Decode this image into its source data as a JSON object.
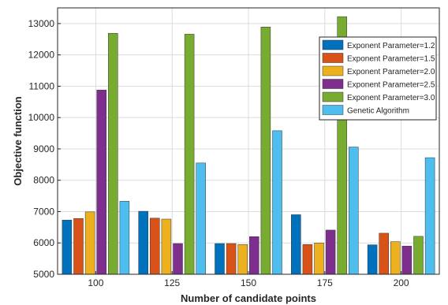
{
  "chart_data": {
    "type": "bar",
    "xlabel": "Number of candidate points",
    "ylabel": "Objective function",
    "categories": [
      "100",
      "125",
      "150",
      "175",
      "200"
    ],
    "ylim": [
      5000,
      13500
    ],
    "yticks": [
      5000,
      6000,
      7000,
      8000,
      9000,
      10000,
      11000,
      12000,
      13000
    ],
    "grid": true,
    "legend_position": "top-right",
    "series": [
      {
        "name": "Exponent Parameter=1.2",
        "color": "#0072BD",
        "values": [
          6730,
          7010,
          5980,
          6900,
          5940
        ]
      },
      {
        "name": "Exponent Parameter=1.5",
        "color": "#D95319",
        "values": [
          6780,
          6790,
          5980,
          5950,
          6310
        ]
      },
      {
        "name": "Exponent Parameter=2.0",
        "color": "#EDB120",
        "values": [
          6990,
          6760,
          5950,
          6000,
          6040
        ]
      },
      {
        "name": "Exponent Parameter=2.5",
        "color": "#7E2F8E",
        "values": [
          10880,
          5980,
          6200,
          6410,
          5900
        ]
      },
      {
        "name": "Exponent Parameter=3.0",
        "color": "#77AC30",
        "values": [
          12690,
          12660,
          12890,
          13220,
          6210
        ]
      },
      {
        "name": "Genetic Algorithm",
        "color": "#4DBEEE",
        "values": [
          7330,
          8550,
          9580,
          9060,
          8720
        ]
      }
    ]
  }
}
